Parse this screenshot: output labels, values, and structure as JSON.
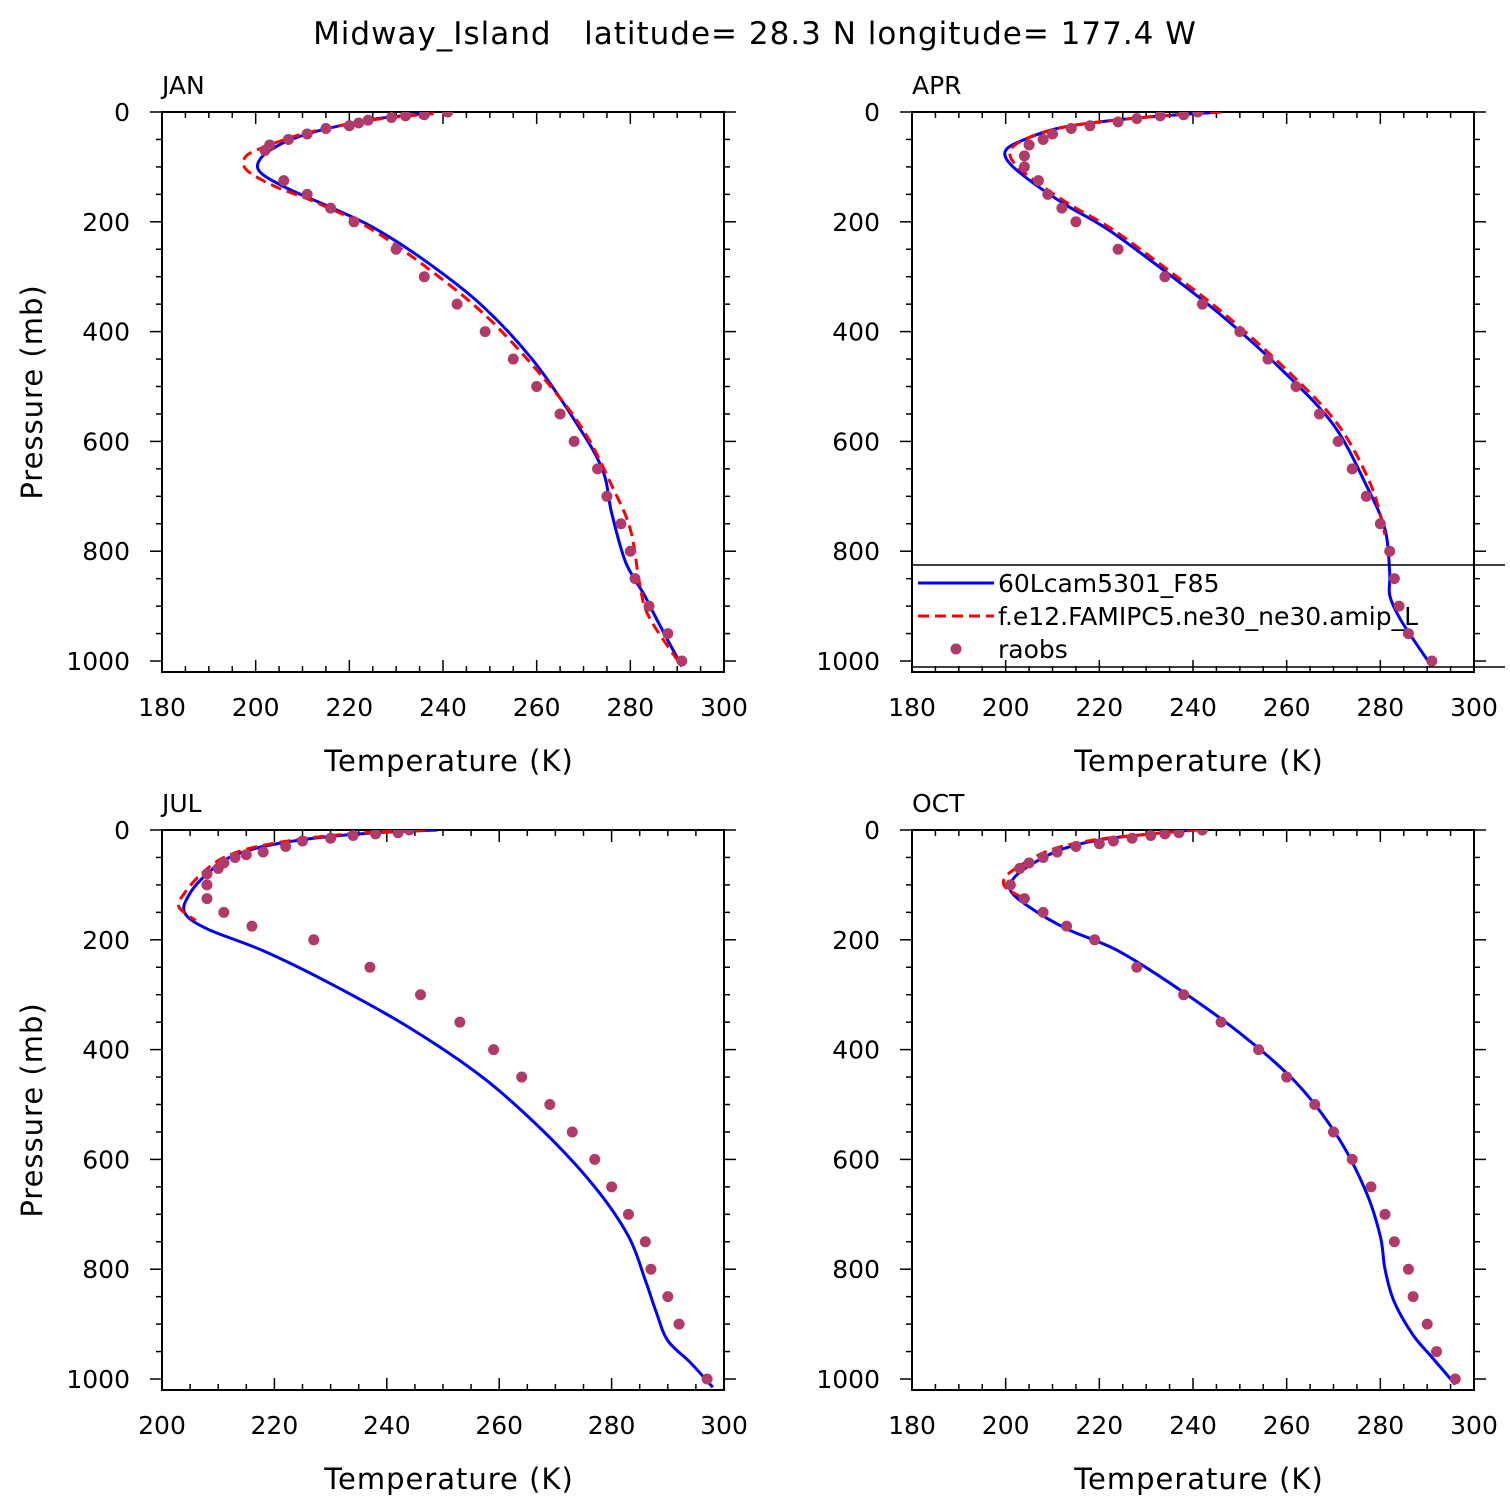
{
  "figure_title": "Midway_Island   latitude= 28.3 N longitude= 177.4 W",
  "colors": {
    "model1": "#0000ff",
    "model2": "#ff0000",
    "obs": "#b03a6a",
    "axes": "#000000"
  },
  "legend": {
    "entries": [
      {
        "label": "60Lcam5301_F85",
        "style": "solid",
        "color": "#0000ff"
      },
      {
        "label": "f.e12.FAMIPC5.ne30_ne30.amip_L",
        "style": "dashed",
        "color": "#ff0000"
      },
      {
        "label": "raobs",
        "style": "dot",
        "color": "#b03a6a"
      }
    ]
  },
  "chart_data": [
    {
      "type": "line",
      "panel": "JAN",
      "xlabel": "Temperature (K)",
      "ylabel": "Pressure (mb)",
      "xlim": [
        180,
        300
      ],
      "ylim": [
        1020,
        0
      ],
      "xticks": [
        180,
        200,
        220,
        240,
        260,
        280,
        300
      ],
      "yticks": [
        0,
        200,
        400,
        600,
        800,
        1000
      ],
      "series": [
        {
          "name": "60Lcam5301_F85",
          "style": "solid",
          "color": "#0000ff",
          "x": [
            236,
            226,
            218,
            211,
            205,
            201,
            201,
            207,
            215,
            225,
            236,
            248,
            259,
            268,
            274,
            276,
            279,
            283,
            286,
            291
          ],
          "y": [
            3,
            12,
            25,
            40,
            60,
            85,
            110,
            140,
            170,
            210,
            270,
            350,
            450,
            560,
            650,
            730,
            820,
            880,
            930,
            1010
          ]
        },
        {
          "name": "f.e12.FAMIPC5.ne30_ne30.amip_L",
          "style": "dashed",
          "color": "#ff0000",
          "x": [
            238,
            227,
            218,
            210,
            203,
            198,
            198,
            204,
            213,
            224,
            236,
            249,
            261,
            270,
            276,
            280,
            282,
            284,
            291
          ],
          "y": [
            3,
            12,
            25,
            40,
            60,
            80,
            105,
            135,
            165,
            210,
            280,
            370,
            480,
            580,
            680,
            760,
            860,
            920,
            1010
          ]
        },
        {
          "name": "raobs",
          "style": "dot",
          "color": "#b03a6a",
          "x": [
            241,
            236,
            232,
            229,
            224,
            222,
            220,
            215,
            211,
            207,
            203,
            202,
            206,
            211,
            216,
            221,
            230,
            236,
            243,
            249,
            255,
            260,
            265,
            268,
            273,
            275,
            278,
            280,
            281,
            284,
            288,
            291
          ],
          "y": [
            0,
            5,
            7,
            10,
            15,
            20,
            25,
            30,
            40,
            50,
            60,
            70,
            125,
            150,
            175,
            200,
            250,
            300,
            350,
            400,
            450,
            500,
            550,
            600,
            650,
            700,
            750,
            800,
            850,
            900,
            950,
            1000
          ]
        }
      ]
    },
    {
      "type": "line",
      "panel": "APR",
      "xlabel": "Temperature (K)",
      "ylabel": "",
      "xlim": [
        180,
        300
      ],
      "ylim": [
        1020,
        0
      ],
      "xticks": [
        180,
        200,
        220,
        240,
        260,
        280,
        300
      ],
      "yticks": [
        0,
        200,
        400,
        600,
        800,
        1000
      ],
      "series": [
        {
          "name": "60Lcam5301_F85",
          "style": "solid",
          "color": "#0000ff",
          "x": [
            246,
            232,
            220,
            211,
            204,
            200,
            201,
            206,
            213,
            222,
            234,
            246,
            259,
            270,
            277,
            281,
            282,
            282,
            284,
            287,
            291
          ],
          "y": [
            0,
            8,
            18,
            30,
            50,
            70,
            95,
            130,
            170,
            215,
            290,
            370,
            470,
            570,
            680,
            760,
            840,
            880,
            920,
            960,
            1010
          ]
        },
        {
          "name": "f.e12.FAMIPC5.ne30_ne30.amip_L",
          "style": "dashed",
          "color": "#ff0000",
          "x": [
            246,
            232,
            220,
            211,
            204,
            201,
            202,
            207,
            214,
            223,
            235,
            247,
            260,
            271,
            278,
            281
          ],
          "y": [
            0,
            8,
            18,
            30,
            50,
            70,
            95,
            130,
            170,
            215,
            290,
            370,
            470,
            570,
            680,
            770
          ]
        },
        {
          "name": "raobs",
          "style": "dot",
          "color": "#b03a6a",
          "x": [
            241,
            238,
            233,
            228,
            224,
            218,
            214,
            210,
            208,
            205,
            204,
            204,
            207,
            209,
            212,
            215,
            224,
            234,
            242,
            250,
            256,
            262,
            267,
            271,
            274,
            277,
            280,
            282,
            283,
            284,
            286,
            291
          ],
          "y": [
            0,
            5,
            7,
            12,
            18,
            25,
            30,
            40,
            50,
            60,
            80,
            100,
            125,
            150,
            175,
            200,
            250,
            300,
            350,
            400,
            450,
            500,
            550,
            600,
            650,
            700,
            750,
            800,
            850,
            900,
            950,
            1000
          ]
        }
      ]
    },
    {
      "type": "line",
      "panel": "JUL",
      "xlabel": "Temperature (K)",
      "ylabel": "Pressure (mb)",
      "xlim": [
        200,
        300
      ],
      "ylim": [
        1020,
        0
      ],
      "xticks": [
        200,
        220,
        240,
        260,
        280,
        300
      ],
      "yticks": [
        0,
        200,
        400,
        600,
        800,
        1000
      ],
      "series": [
        {
          "name": "60Lcam5301_F85",
          "style": "solid",
          "color": "#0000ff",
          "x": [
            249,
            238,
            227,
            218,
            212,
            208,
            205,
            204,
            208,
            218,
            230,
            244,
            257,
            268,
            277,
            283,
            286,
            288,
            290,
            294,
            298
          ],
          "y": [
            0,
            5,
            15,
            30,
            50,
            80,
            115,
            150,
            180,
            220,
            280,
            360,
            450,
            550,
            650,
            740,
            820,
            880,
            930,
            970,
            1015
          ]
        },
        {
          "name": "f.e12.FAMIPC5.ne30_ne30.amip_L",
          "style": "dashed",
          "color": "#ff0000",
          "x": [
            247,
            236,
            226,
            217,
            211,
            207,
            204,
            203,
            206
          ],
          "y": [
            0,
            5,
            15,
            30,
            50,
            80,
            115,
            140,
            165
          ]
        },
        {
          "name": "raobs",
          "style": "dot",
          "color": "#b03a6a",
          "x": [
            244,
            242,
            238,
            234,
            230,
            225,
            222,
            218,
            215,
            213,
            211,
            210,
            208,
            208,
            208,
            211,
            216,
            227,
            237,
            246,
            253,
            259,
            264,
            269,
            273,
            277,
            280,
            283,
            286,
            287,
            290,
            292,
            297
          ],
          "y": [
            0,
            5,
            7,
            10,
            15,
            20,
            30,
            40,
            45,
            50,
            60,
            70,
            80,
            100,
            125,
            150,
            175,
            200,
            250,
            300,
            350,
            400,
            450,
            500,
            550,
            600,
            650,
            700,
            750,
            800,
            850,
            900,
            1000
          ]
        }
      ]
    },
    {
      "type": "line",
      "panel": "OCT",
      "xlabel": "Temperature (K)",
      "ylabel": "",
      "xlim": [
        180,
        300
      ],
      "ylim": [
        1020,
        0
      ],
      "xticks": [
        180,
        200,
        220,
        240,
        260,
        280,
        300
      ],
      "yticks": [
        0,
        200,
        400,
        600,
        800,
        1000
      ],
      "series": [
        {
          "name": "60Lcam5301_F85",
          "style": "solid",
          "color": "#0000ff",
          "x": [
            240,
            230,
            220,
            212,
            206,
            202,
            201,
            205,
            213,
            224,
            237,
            250,
            262,
            271,
            277,
            280,
            281,
            283,
            287,
            291,
            296
          ],
          "y": [
            0,
            8,
            18,
            35,
            60,
            85,
            110,
            140,
            180,
            220,
            290,
            370,
            460,
            560,
            660,
            740,
            800,
            860,
            920,
            960,
            1010
          ]
        },
        {
          "name": "f.e12.FAMIPC5.ne30_ne30.amip_L",
          "style": "dashed",
          "color": "#ff0000",
          "x": [
            241,
            230,
            219,
            210,
            204,
            200,
            200,
            204
          ],
          "y": [
            0,
            8,
            18,
            35,
            60,
            85,
            105,
            125
          ]
        },
        {
          "name": "raobs",
          "style": "dot",
          "color": "#b03a6a",
          "x": [
            242,
            237,
            234,
            231,
            227,
            223,
            220,
            215,
            211,
            208,
            205,
            203,
            201,
            204,
            208,
            213,
            219,
            228,
            238,
            246,
            254,
            260,
            266,
            270,
            274,
            278,
            281,
            283,
            286,
            287,
            290,
            292,
            296
          ],
          "y": [
            0,
            5,
            7,
            10,
            15,
            20,
            25,
            30,
            40,
            50,
            60,
            70,
            100,
            125,
            150,
            175,
            200,
            250,
            300,
            350,
            400,
            450,
            500,
            550,
            600,
            650,
            700,
            750,
            800,
            850,
            900,
            950,
            1000
          ]
        }
      ]
    }
  ]
}
